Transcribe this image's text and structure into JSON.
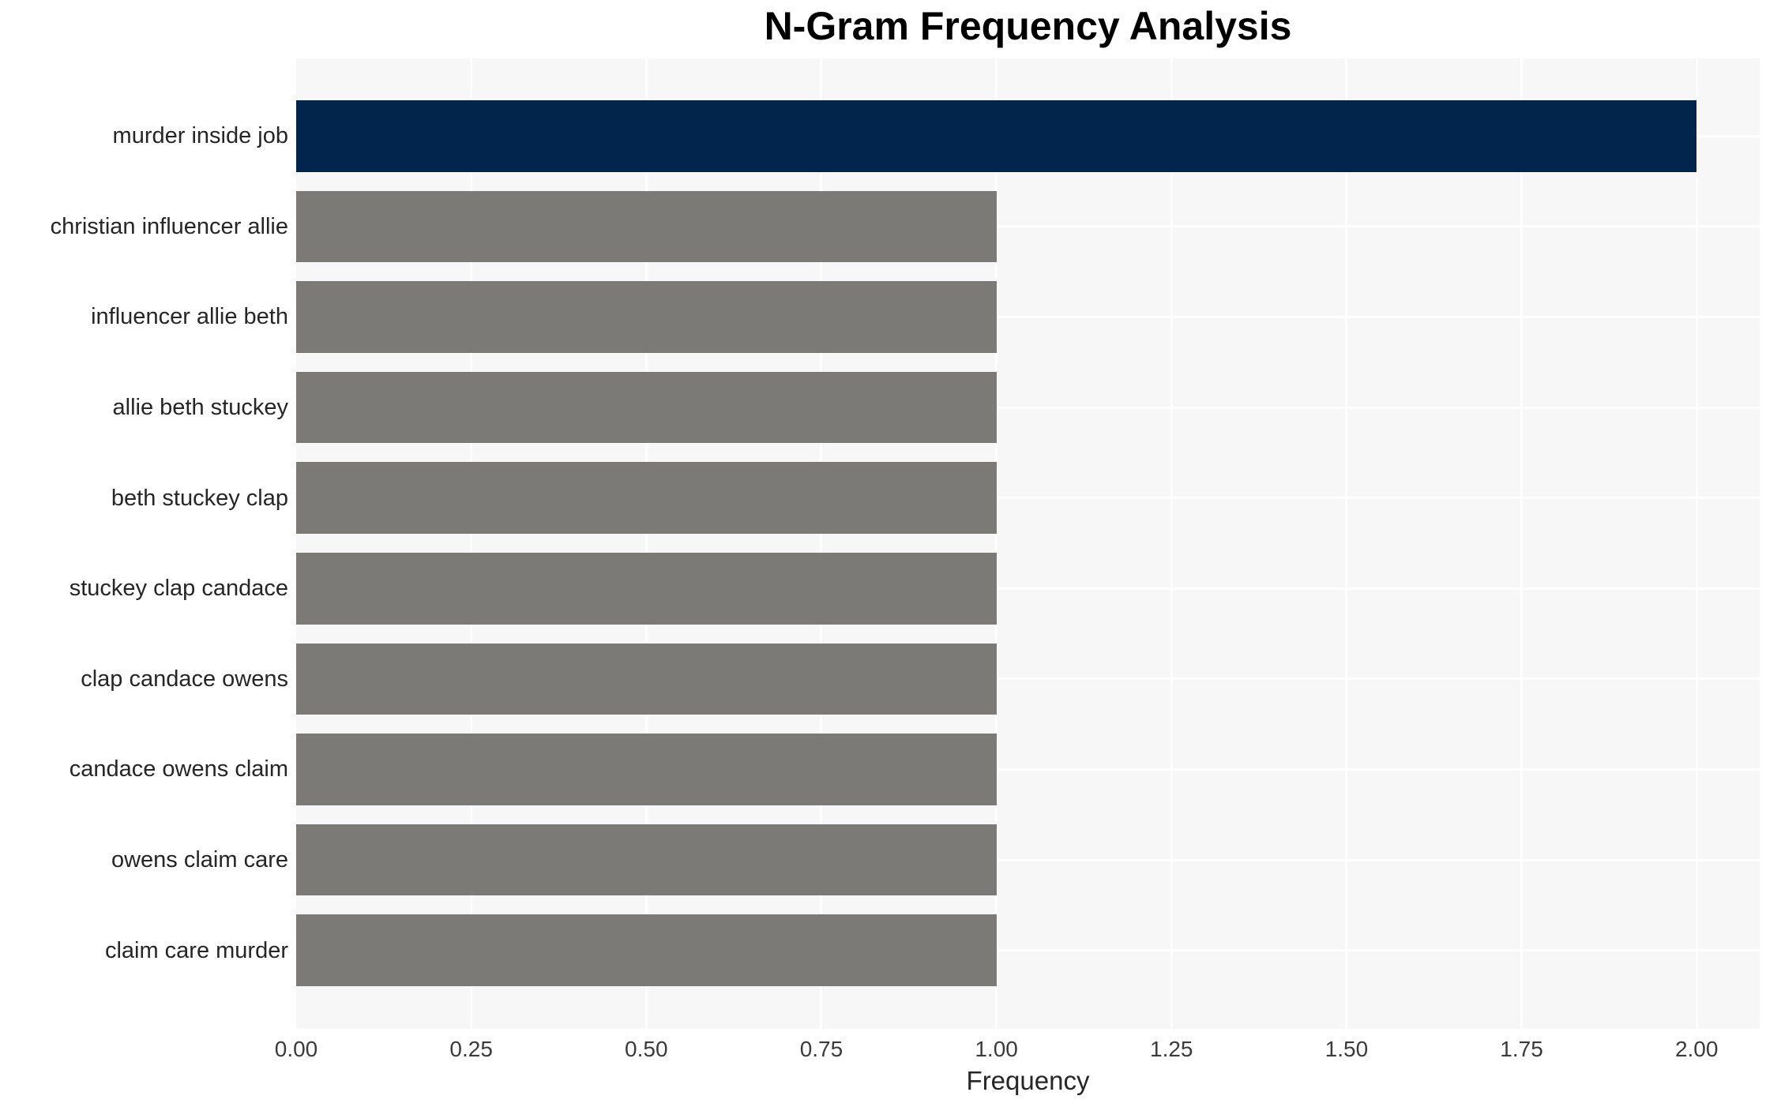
{
  "chart_data": {
    "type": "bar",
    "orientation": "horizontal",
    "title": "N-Gram Frequency Analysis",
    "xlabel": "Frequency",
    "ylabel": "",
    "categories": [
      "murder inside job",
      "christian influencer allie",
      "influencer allie beth",
      "allie beth stuckey",
      "beth stuckey clap",
      "stuckey clap candace",
      "clap candace owens",
      "candace owens claim",
      "owens claim care",
      "claim care murder"
    ],
    "values": [
      2,
      1,
      1,
      1,
      1,
      1,
      1,
      1,
      1,
      1
    ],
    "xlim": [
      0,
      2.09
    ],
    "xticks": [
      0.0,
      0.25,
      0.5,
      0.75,
      1.0,
      1.25,
      1.5,
      1.75,
      2.0
    ],
    "xtick_labels": [
      "0.00",
      "0.25",
      "0.50",
      "0.75",
      "1.00",
      "1.25",
      "1.50",
      "1.75",
      "2.00"
    ],
    "grid": true,
    "legend": "none",
    "colors": {
      "highlight_bar": "#02254d",
      "default_bar": "#7b7a76",
      "plot_background": "#f7f7f7",
      "gridline": "#ffffff",
      "title_text": "#000000",
      "tick_text": "#3b3b3b",
      "category_text": "#262626"
    },
    "bar_colors": [
      "#02254d",
      "#7b7a76",
      "#7b7a76",
      "#7b7a76",
      "#7b7a76",
      "#7b7a76",
      "#7b7a76",
      "#7b7a76",
      "#7b7a76",
      "#7b7a76"
    ]
  }
}
